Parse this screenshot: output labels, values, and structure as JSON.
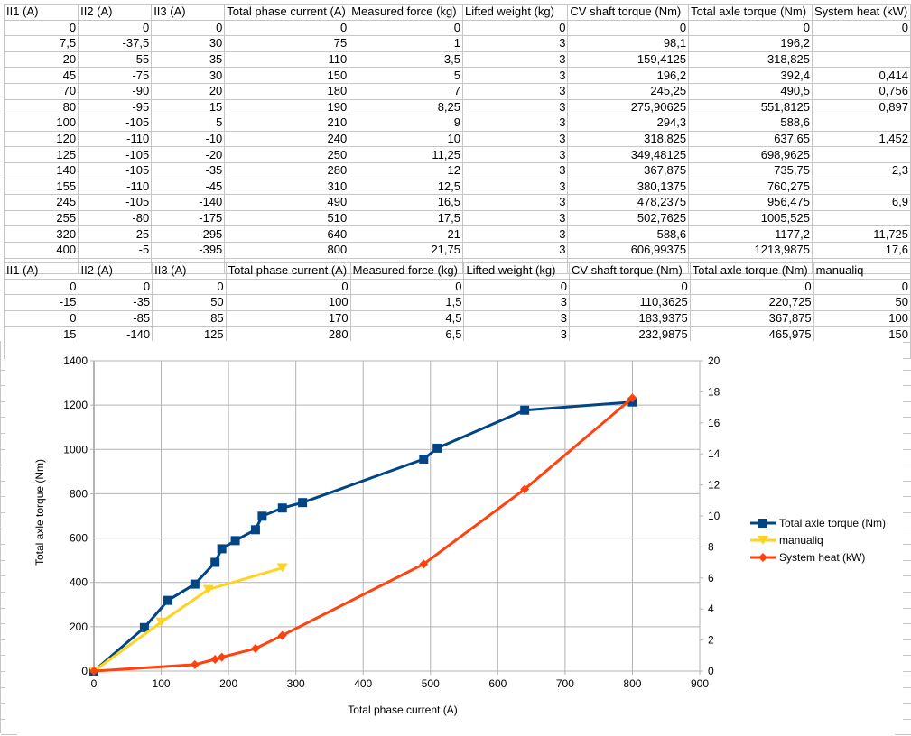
{
  "table1": {
    "headers": [
      "II1 (A)",
      "II2 (A)",
      "II3 (A)",
      "Total phase current (A)",
      "Measured force (kg)",
      "Lifted weight (kg)",
      "CV shaft torque (Nm)",
      "Total axle torque (Nm)",
      "System heat (kW)"
    ],
    "rows": [
      [
        "0",
        "0",
        "0",
        "0",
        "0",
        "0",
        "0",
        "0",
        "0"
      ],
      [
        "7,5",
        "-37,5",
        "30",
        "75",
        "1",
        "3",
        "98,1",
        "196,2",
        ""
      ],
      [
        "20",
        "-55",
        "35",
        "110",
        "3,5",
        "3",
        "159,4125",
        "318,825",
        ""
      ],
      [
        "45",
        "-75",
        "30",
        "150",
        "5",
        "3",
        "196,2",
        "392,4",
        "0,414"
      ],
      [
        "70",
        "-90",
        "20",
        "180",
        "7",
        "3",
        "245,25",
        "490,5",
        "0,756"
      ],
      [
        "80",
        "-95",
        "15",
        "190",
        "8,25",
        "3",
        "275,90625",
        "551,8125",
        "0,897"
      ],
      [
        "100",
        "-105",
        "5",
        "210",
        "9",
        "3",
        "294,3",
        "588,6",
        ""
      ],
      [
        "120",
        "-110",
        "-10",
        "240",
        "10",
        "3",
        "318,825",
        "637,65",
        "1,452"
      ],
      [
        "125",
        "-105",
        "-20",
        "250",
        "11,25",
        "3",
        "349,48125",
        "698,9625",
        ""
      ],
      [
        "140",
        "-105",
        "-35",
        "280",
        "12",
        "3",
        "367,875",
        "735,75",
        "2,3"
      ],
      [
        "155",
        "-110",
        "-45",
        "310",
        "12,5",
        "3",
        "380,1375",
        "760,275",
        ""
      ],
      [
        "245",
        "-105",
        "-140",
        "490",
        "16,5",
        "3",
        "478,2375",
        "956,475",
        "6,9"
      ],
      [
        "255",
        "-80",
        "-175",
        "510",
        "17,5",
        "3",
        "502,7625",
        "1005,525",
        ""
      ],
      [
        "320",
        "-25",
        "-295",
        "640",
        "21",
        "3",
        "588,6",
        "1177,2",
        "11,725"
      ],
      [
        "400",
        "-5",
        "-395",
        "800",
        "21,75",
        "3",
        "606,99375",
        "1213,9875",
        "17,6"
      ]
    ]
  },
  "table2": {
    "headers": [
      "II1 (A)",
      "II2 (A)",
      "II3 (A)",
      "Total phase current (A)",
      "Measured force (kg)",
      "Lifted weight (kg)",
      "CV shaft torque (Nm)",
      "Total axle torque (Nm)",
      "manualiq"
    ],
    "rows": [
      [
        "0",
        "0",
        "0",
        "0",
        "0",
        "0",
        "0",
        "0",
        "0"
      ],
      [
        "-15",
        "-35",
        "50",
        "100",
        "1,5",
        "3",
        "110,3625",
        "220,725",
        "50"
      ],
      [
        "0",
        "-85",
        "85",
        "170",
        "4,5",
        "3",
        "183,9375",
        "367,875",
        "100"
      ],
      [
        "15",
        "-140",
        "125",
        "280",
        "6,5",
        "3",
        "232,9875",
        "465,975",
        "150"
      ]
    ]
  },
  "chart_data": {
    "type": "line",
    "title": "",
    "xlabel": "Total phase current (A)",
    "ylabel": "Total axle torque (Nm)",
    "y2label": "",
    "xlim": [
      0,
      900
    ],
    "ylim": [
      0,
      1400
    ],
    "y2lim": [
      0,
      20
    ],
    "x_ticks": [
      "0",
      "100",
      "200",
      "300",
      "400",
      "500",
      "600",
      "700",
      "800",
      "900"
    ],
    "y_ticks": [
      "0",
      "200",
      "400",
      "600",
      "800",
      "1000",
      "1200",
      "1400"
    ],
    "y2_ticks": [
      "0",
      "2",
      "4",
      "6",
      "8",
      "10",
      "12",
      "14",
      "16",
      "18",
      "20"
    ],
    "grid": true,
    "legend_position": "right",
    "series": [
      {
        "name": "Total axle torque (Nm)",
        "axis": "left",
        "marker": "square",
        "color": "#004586",
        "x": [
          0,
          75,
          110,
          150,
          180,
          190,
          210,
          240,
          250,
          280,
          310,
          490,
          510,
          640,
          800
        ],
        "y": [
          0,
          196.2,
          318.825,
          392.4,
          490.5,
          551.8125,
          588.6,
          637.65,
          698.9625,
          735.75,
          760.275,
          956.475,
          1005.525,
          1177.2,
          1213.9875
        ]
      },
      {
        "name": "manualiq",
        "axis": "left",
        "marker": "triangle-down",
        "color": "#ffd320",
        "x": [
          0,
          100,
          170,
          280
        ],
        "y": [
          0,
          220.725,
          367.875,
          465.975
        ]
      },
      {
        "name": "System heat (kW)",
        "axis": "right",
        "marker": "diamond",
        "color": "#ff420e",
        "x": [
          0,
          150,
          180,
          190,
          240,
          280,
          490,
          640,
          800
        ],
        "y": [
          0,
          0.414,
          0.756,
          0.897,
          1.452,
          2.3,
          6.9,
          11.725,
          17.6
        ]
      }
    ]
  }
}
